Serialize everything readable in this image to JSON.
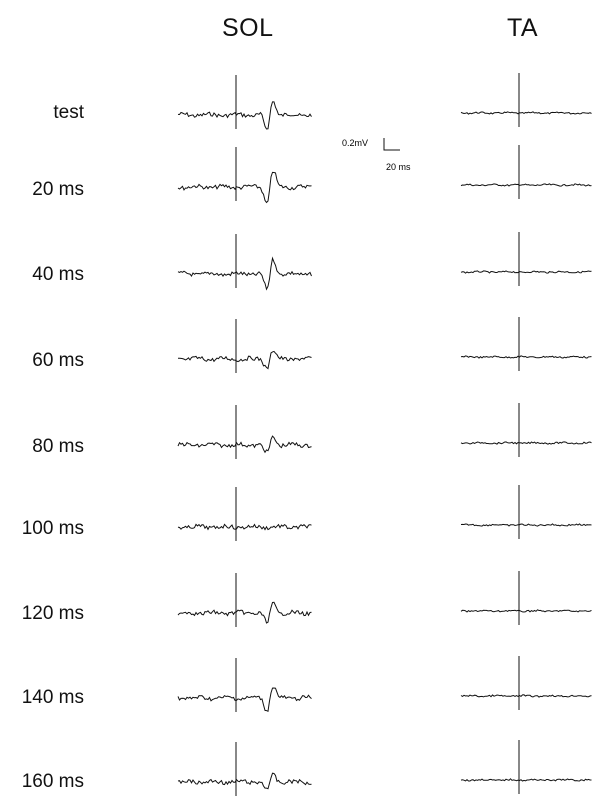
{
  "chart_data": {
    "type": "line",
    "columns": [
      "SOL",
      "TA"
    ],
    "rows": [
      "test",
      "20 ms",
      "40 ms",
      "60 ms",
      "80 ms",
      "100 ms",
      "120 ms",
      "140 ms",
      "160 ms"
    ],
    "scale_bar": {
      "amplitude_label": "0.2mV",
      "time_label": "20 ms"
    },
    "reflex_response_relative_amplitude": {
      "SOL": [
        0.9,
        1.0,
        0.95,
        0.55,
        0.5,
        0.05,
        0.6,
        0.75,
        0.45
      ],
      "TA": [
        0.05,
        0.05,
        0.03,
        0.02,
        0.02,
        0.02,
        0.05,
        0.03,
        0.02
      ]
    },
    "stimulus_artifact": true,
    "grid": false,
    "legend": "none"
  }
}
